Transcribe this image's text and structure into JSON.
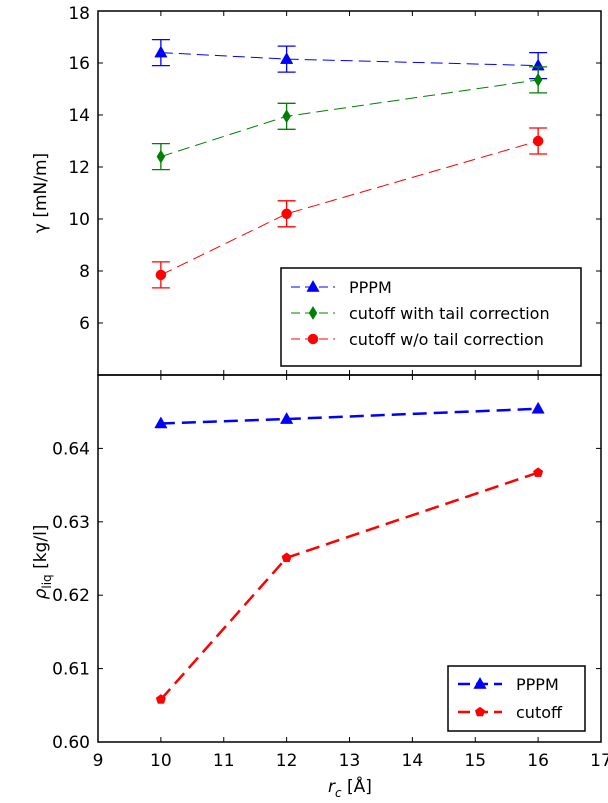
{
  "chart_data": [
    {
      "type": "line",
      "ylabel": "γ [mN/m]",
      "xlim": [
        9,
        17
      ],
      "ylim": [
        4,
        18
      ],
      "x_ticks": [
        "9",
        "10",
        "11",
        "12",
        "13",
        "14",
        "15",
        "16",
        "17"
      ],
      "y_ticks": [
        "6",
        "8",
        "10",
        "12",
        "14",
        "16",
        "18"
      ],
      "legend_position": "lower-right",
      "series": [
        {
          "name": "PPPM",
          "x": [
            10,
            12,
            16
          ],
          "y": [
            16.4,
            16.15,
            15.9
          ],
          "err": [
            0.5,
            0.5,
            0.5
          ],
          "color": "#0000ff",
          "marker": "triangle"
        },
        {
          "name": "cutoff with tail correction",
          "x": [
            10,
            12,
            16
          ],
          "y": [
            12.4,
            13.95,
            15.35
          ],
          "err": [
            0.5,
            0.5,
            0.5
          ],
          "color": "#008000",
          "marker": "diamond"
        },
        {
          "name": "cutoff w/o tail correction",
          "x": [
            10,
            12,
            16
          ],
          "y": [
            7.85,
            10.2,
            13.0
          ],
          "err": [
            0.5,
            0.5,
            0.5
          ],
          "color": "#ff0000",
          "marker": "circle"
        }
      ]
    },
    {
      "type": "line",
      "ylabel_main": "ρ",
      "ylabel_sub": "liq",
      "ylabel_unit": " [kg/l]",
      "xlabel_main": "r",
      "xlabel_sub": "c",
      "xlabel_unit": " [Å]",
      "xlim": [
        9,
        17
      ],
      "ylim": [
        0.6,
        0.65
      ],
      "x_ticks": [
        "9",
        "10",
        "11",
        "12",
        "13",
        "14",
        "15",
        "16",
        "17"
      ],
      "y_ticks": [
        "0.60",
        "0.61",
        "0.62",
        "0.63",
        "0.64"
      ],
      "legend_position": "lower-right",
      "series": [
        {
          "name": "PPPM",
          "x": [
            10,
            12,
            16
          ],
          "y": [
            0.6434,
            0.644,
            0.6454
          ],
          "color": "#0000ff",
          "marker": "triangle"
        },
        {
          "name": "cutoff",
          "x": [
            10,
            12,
            16
          ],
          "y": [
            0.6058,
            0.6251,
            0.6367
          ],
          "color": "#ff0000",
          "marker": "pentagon"
        }
      ]
    }
  ]
}
